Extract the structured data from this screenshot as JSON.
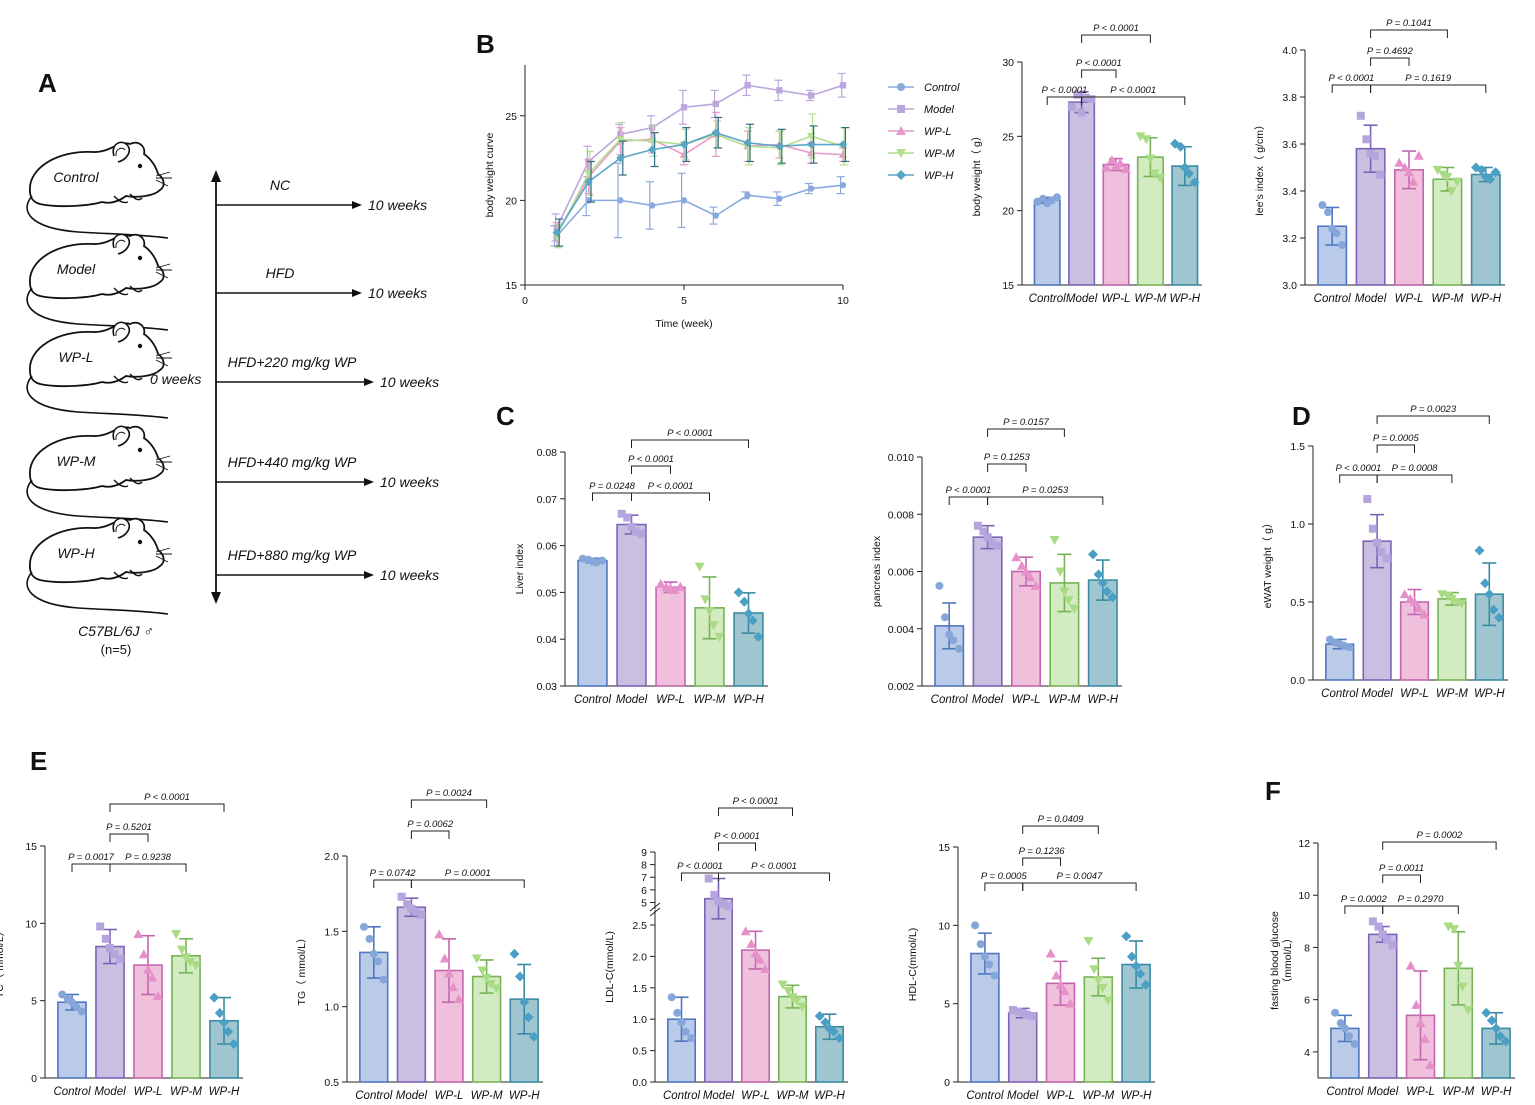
{
  "chart_data": [
    {
      "id": "A",
      "type": "schematic",
      "panel_label": "A",
      "groups": [
        "Control",
        "Model",
        "WP-L",
        "WP-M",
        "WP-H"
      ],
      "treatments": [
        "NC",
        "HFD",
        "HFD+220 mg/kg WP",
        "HFD+440 mg/kg WP",
        "HFD+880 mg/kg WP"
      ],
      "duration": "10 weeks",
      "start": "0 weeks",
      "strain": "C57BL/6J ♂",
      "n": "(n=5)"
    },
    {
      "id": "B1",
      "type": "line",
      "panel_label": "B",
      "xlabel": "Time (week)",
      "ylabel": "body weight curve",
      "xlim": [
        0,
        10
      ],
      "ylim": [
        15,
        28
      ],
      "xticks": [
        0,
        5,
        10
      ],
      "yticks": [
        15,
        20,
        25
      ],
      "x": [
        1,
        2,
        3,
        4,
        5,
        6,
        7,
        8,
        9,
        10
      ],
      "series": [
        {
          "name": "Control",
          "values": [
            17.9,
            20.0,
            20.0,
            19.7,
            20.0,
            19.1,
            20.3,
            20.1,
            20.7,
            20.9
          ],
          "err": [
            0.6,
            0.9,
            2.2,
            1.4,
            1.6,
            0.5,
            0.2,
            0.4,
            0.3,
            0.5
          ]
        },
        {
          "name": "Model",
          "values": [
            18.4,
            22.3,
            23.9,
            24.3,
            25.5,
            25.7,
            26.8,
            26.5,
            26.2,
            26.8
          ],
          "err": [
            0.8,
            0.9,
            0.6,
            0.7,
            1.0,
            0.8,
            0.6,
            0.6,
            0.3,
            0.7
          ]
        },
        {
          "name": "WP-L",
          "values": [
            18.0,
            21.4,
            23.5,
            23.6,
            22.7,
            23.9,
            23.2,
            23.3,
            22.8,
            22.7
          ],
          "err": [
            0.7,
            1.0,
            0.8,
            0.8,
            0.6,
            1.3,
            0.9,
            0.8,
            0.6,
            0.4
          ]
        },
        {
          "name": "WP-M",
          "values": [
            17.9,
            21.6,
            23.6,
            23.5,
            23.3,
            23.9,
            23.2,
            23.1,
            23.8,
            23.2
          ],
          "err": [
            0.7,
            1.3,
            1.0,
            0.9,
            0.9,
            0.8,
            1.1,
            1.0,
            1.3,
            1.1
          ]
        },
        {
          "name": "WP-H",
          "values": [
            18.1,
            21.1,
            22.5,
            23.0,
            23.3,
            24.0,
            23.4,
            23.2,
            23.3,
            23.3
          ],
          "err": [
            0.8,
            1.2,
            1.0,
            1.0,
            1.0,
            0.9,
            1.1,
            1.0,
            1.1,
            1.0
          ]
        }
      ]
    },
    {
      "id": "B2",
      "type": "bar",
      "ylabel": "body weight（ g）",
      "categories": [
        "Control",
        "Model",
        "WP-L",
        "WP-M",
        "WP-H"
      ],
      "ylim": [
        15,
        30
      ],
      "yticks": [
        15,
        20,
        25,
        30
      ],
      "values": [
        20.7,
        27.3,
        23.1,
        23.6,
        23.0
      ],
      "err": [
        0.2,
        0.7,
        0.4,
        1.3,
        1.3
      ],
      "points": [
        [
          20.6,
          20.8,
          20.5,
          20.7,
          20.9
        ],
        [
          27.0,
          27.8,
          26.6,
          27.6,
          27.5
        ],
        [
          22.9,
          23.4,
          23.0,
          23.2,
          22.8
        ],
        [
          25.0,
          24.8,
          23.5,
          22.5,
          22.2
        ],
        [
          24.5,
          24.3,
          22.9,
          22.5,
          21.9
        ]
      ],
      "comparisons": [
        {
          "from": 0,
          "to": 1,
          "label": "P < 0.0001",
          "level": 1
        },
        {
          "from": 1,
          "to": 2,
          "label": "P < 0.0001",
          "level": 2
        },
        {
          "from": 1,
          "to": 3,
          "label": "P < 0.0001",
          "level": 3
        },
        {
          "from": 1,
          "to": 4,
          "label": "P < 0.0001",
          "level": 1
        }
      ]
    },
    {
      "id": "B3",
      "type": "bar",
      "ylabel": "lee’s index（ g/cm）",
      "categories": [
        "Control",
        "Model",
        "WP-L",
        "WP-M",
        "WP-H"
      ],
      "ylim": [
        3.0,
        4.0
      ],
      "yticks": [
        "3.0",
        "3.2",
        "3.4",
        "3.6",
        "3.8",
        "4.0"
      ],
      "values": [
        3.25,
        3.58,
        3.49,
        3.45,
        3.47
      ],
      "err": [
        0.08,
        0.1,
        0.08,
        0.05,
        0.03
      ],
      "points": [
        [
          3.34,
          3.31,
          3.24,
          3.22,
          3.17
        ],
        [
          3.72,
          3.62,
          3.56,
          3.55,
          3.47
        ],
        [
          3.52,
          3.5,
          3.48,
          3.44,
          3.55
        ],
        [
          3.49,
          3.47,
          3.46,
          3.4,
          3.44
        ],
        [
          3.5,
          3.49,
          3.46,
          3.45,
          3.48
        ]
      ],
      "comparisons": [
        {
          "from": 0,
          "to": 1,
          "label": "P < 0.0001",
          "level": 1
        },
        {
          "from": 1,
          "to": 2,
          "label": "P = 0.4692",
          "level": 2
        },
        {
          "from": 1,
          "to": 3,
          "label": "P = 0.1041",
          "level": 3
        },
        {
          "from": 1,
          "to": 4,
          "label": "P = 0.1619",
          "level": 1
        }
      ]
    },
    {
      "id": "C1",
      "type": "bar",
      "panel_label": "C",
      "ylabel": "Liver index",
      "categories": [
        "Control",
        "Model",
        "WP-L",
        "WP-M",
        "WP-H"
      ],
      "ylim": [
        0.03,
        0.08
      ],
      "yticks": [
        "0.03",
        "0.04",
        "0.05",
        "0.06",
        "0.07",
        "0.08"
      ],
      "values": [
        0.0568,
        0.0645,
        0.0511,
        0.0467,
        0.0456
      ],
      "err": [
        0.0005,
        0.002,
        0.0011,
        0.0066,
        0.0043
      ],
      "points": [
        [
          0.0572,
          0.057,
          0.0566,
          0.0564,
          0.0568
        ],
        [
          0.0668,
          0.066,
          0.064,
          0.063,
          0.0625
        ],
        [
          0.0518,
          0.0512,
          0.0508,
          0.0505,
          0.0512
        ],
        [
          0.0555,
          0.0485,
          0.046,
          0.043,
          0.0405
        ],
        [
          0.05,
          0.048,
          0.0455,
          0.044,
          0.0405
        ]
      ],
      "comparisons": [
        {
          "from": 0,
          "to": 1,
          "label": "P = 0.0248",
          "level": 1
        },
        {
          "from": 1,
          "to": 2,
          "label": "P < 0.0001",
          "level": 2
        },
        {
          "from": 1,
          "to": 3,
          "label": "P < 0.0001",
          "level": 1
        },
        {
          "from": 1,
          "to": 4,
          "label": "P < 0.0001",
          "level": 3
        }
      ]
    },
    {
      "id": "C2",
      "type": "bar",
      "ylabel": "pancreas index",
      "categories": [
        "Control",
        "Model",
        "WP-L",
        "WP-M",
        "WP-H"
      ],
      "ylim": [
        0.002,
        0.01
      ],
      "yticks": [
        "0.002",
        "0.004",
        "0.006",
        "0.008",
        "0.010"
      ],
      "values": [
        0.0041,
        0.0072,
        0.006,
        0.0056,
        0.0057
      ],
      "err": [
        0.0008,
        0.0004,
        0.0005,
        0.001,
        0.0007
      ],
      "points": [
        [
          0.0055,
          0.0044,
          0.0038,
          0.0036,
          0.0033
        ],
        [
          0.0076,
          0.0074,
          0.0072,
          0.007,
          0.0069
        ],
        [
          0.0065,
          0.0062,
          0.006,
          0.0058,
          0.0055
        ],
        [
          0.0071,
          0.006,
          0.0053,
          0.005,
          0.0047
        ],
        [
          0.0066,
          0.0059,
          0.0056,
          0.0053,
          0.0051
        ]
      ],
      "comparisons": [
        {
          "from": 0,
          "to": 1,
          "label": "P < 0.0001",
          "level": 1
        },
        {
          "from": 1,
          "to": 2,
          "label": "P = 0.1253",
          "level": 2
        },
        {
          "from": 1,
          "to": 3,
          "label": "P = 0.0157",
          "level": 3
        },
        {
          "from": 1,
          "to": 4,
          "label": "P = 0.0253",
          "level": 1
        }
      ]
    },
    {
      "id": "D",
      "type": "bar",
      "panel_label": "D",
      "ylabel": "eWAT weight（ g）",
      "categories": [
        "Control",
        "Model",
        "WP-L",
        "WP-M",
        "WP-H"
      ],
      "ylim": [
        0.0,
        1.5
      ],
      "yticks": [
        "0.0",
        "0.5",
        "1.0",
        "1.5"
      ],
      "values": [
        0.23,
        0.89,
        0.5,
        0.52,
        0.55
      ],
      "err": [
        0.03,
        0.17,
        0.08,
        0.04,
        0.2
      ],
      "points": [
        [
          0.26,
          0.24,
          0.23,
          0.22,
          0.21
        ],
        [
          1.16,
          0.97,
          0.88,
          0.82,
          0.78
        ],
        [
          0.55,
          0.52,
          0.5,
          0.46,
          0.42
        ],
        [
          0.55,
          0.54,
          0.52,
          0.5,
          0.49
        ],
        [
          0.83,
          0.62,
          0.55,
          0.45,
          0.4
        ]
      ],
      "comparisons": [
        {
          "from": 0,
          "to": 1,
          "label": "P < 0.0001",
          "level": 1
        },
        {
          "from": 1,
          "to": 2,
          "label": "P = 0.0005",
          "level": 2
        },
        {
          "from": 1,
          "to": 3,
          "label": "P = 0.0008",
          "level": 1
        },
        {
          "from": 1,
          "to": 4,
          "label": "P = 0.0023",
          "level": 3
        }
      ]
    },
    {
      "id": "E1",
      "type": "bar",
      "panel_label": "E",
      "ylabel": "TC（ mmol/L）",
      "categories": [
        "Control",
        "Model",
        "WP-L",
        "WP-M",
        "WP-H"
      ],
      "ylim": [
        0,
        15
      ],
      "yticks": [
        "0",
        "5",
        "10",
        "15"
      ],
      "values": [
        4.9,
        8.5,
        7.3,
        7.9,
        3.7
      ],
      "err": [
        0.5,
        1.1,
        1.9,
        1.1,
        1.5
      ],
      "points": [
        [
          5.4,
          5.1,
          4.9,
          4.6,
          4.3
        ],
        [
          9.8,
          9.0,
          8.4,
          8.0,
          7.7
        ],
        [
          9.3,
          8.0,
          7.0,
          6.5,
          5.3
        ],
        [
          9.3,
          8.3,
          7.8,
          7.5,
          7.3
        ],
        [
          5.2,
          4.2,
          3.6,
          3.0,
          2.2
        ]
      ],
      "comparisons": [
        {
          "from": 0,
          "to": 1,
          "label": "P = 0.0017",
          "level": 1
        },
        {
          "from": 1,
          "to": 2,
          "label": "P = 0.5201",
          "level": 2
        },
        {
          "from": 1,
          "to": 3,
          "label": "P = 0.9238",
          "level": 1
        },
        {
          "from": 1,
          "to": 4,
          "label": "P < 0.0001",
          "level": 3
        }
      ]
    },
    {
      "id": "E2",
      "type": "bar",
      "ylabel": "TG（ mmol/L）",
      "categories": [
        "Control",
        "Model",
        "WP-L",
        "WP-M",
        "WP-H"
      ],
      "ylim": [
        0.5,
        2.0
      ],
      "yticks": [
        "0.5",
        "1.0",
        "1.5",
        "2.0"
      ],
      "values": [
        1.36,
        1.66,
        1.24,
        1.2,
        1.05
      ],
      "err": [
        0.17,
        0.06,
        0.21,
        0.11,
        0.23
      ],
      "points": [
        [
          1.53,
          1.45,
          1.35,
          1.3,
          1.18
        ],
        [
          1.73,
          1.68,
          1.65,
          1.63,
          1.61
        ],
        [
          1.48,
          1.32,
          1.22,
          1.13,
          1.05
        ],
        [
          1.32,
          1.24,
          1.19,
          1.15,
          1.12
        ],
        [
          1.35,
          1.2,
          1.03,
          0.93,
          0.8
        ]
      ],
      "comparisons": [
        {
          "from": 0,
          "to": 1,
          "label": "P = 0.0742",
          "level": 1
        },
        {
          "from": 1,
          "to": 2,
          "label": "P = 0.0062",
          "level": 2
        },
        {
          "from": 1,
          "to": 3,
          "label": "P = 0.0024",
          "level": 3
        },
        {
          "from": 1,
          "to": 4,
          "label": "P = 0.0001",
          "level": 1
        }
      ]
    },
    {
      "id": "E3",
      "type": "bar",
      "ylabel": "LDL-C(mmol/L)",
      "axis_break": true,
      "categories": [
        "Control",
        "Model",
        "WP-L",
        "WP-M",
        "WP-H"
      ],
      "ylim": [
        0,
        9
      ],
      "yticks_lower": [
        "0.0",
        "0.5",
        "1.0",
        "1.5",
        "2.0",
        "2.5"
      ],
      "yticks_upper": [
        "5",
        "6",
        "7",
        "8",
        "9"
      ],
      "values": [
        1.0,
        5.3,
        2.1,
        1.36,
        0.88
      ],
      "err": [
        0.35,
        1.6,
        0.3,
        0.18,
        0.2
      ],
      "points": [
        [
          1.35,
          1.1,
          0.95,
          0.8,
          0.7
        ],
        [
          6.9,
          5.6,
          5.1,
          4.9,
          4.7
        ],
        [
          2.4,
          2.2,
          2.05,
          1.95,
          1.8
        ],
        [
          1.55,
          1.45,
          1.35,
          1.3,
          1.2
        ],
        [
          1.05,
          0.95,
          0.85,
          0.8,
          0.7
        ]
      ],
      "comparisons": [
        {
          "from": 0,
          "to": 1,
          "label": "P < 0.0001",
          "level": 1
        },
        {
          "from": 1,
          "to": 2,
          "label": "P < 0.0001",
          "level": 2
        },
        {
          "from": 1,
          "to": 3,
          "label": "P < 0.0001",
          "level": 3
        },
        {
          "from": 1,
          "to": 4,
          "label": "P < 0.0001",
          "level": 1
        }
      ]
    },
    {
      "id": "E4",
      "type": "bar",
      "ylabel": "HDL-C(mmol/L)",
      "categories": [
        "Control",
        "Model",
        "WP-L",
        "WP-M",
        "WP-H"
      ],
      "ylim": [
        0,
        15
      ],
      "yticks": [
        "0",
        "5",
        "10",
        "15"
      ],
      "values": [
        8.2,
        4.4,
        6.3,
        6.7,
        7.5
      ],
      "err": [
        1.3,
        0.3,
        1.4,
        1.2,
        1.5
      ],
      "points": [
        [
          10.0,
          8.8,
          8.0,
          7.5,
          6.8
        ],
        [
          4.6,
          4.5,
          4.4,
          4.3,
          4.2
        ],
        [
          8.2,
          6.8,
          6.2,
          5.8,
          5.0
        ],
        [
          9.0,
          7.2,
          6.5,
          6.0,
          5.2
        ],
        [
          9.3,
          8.0,
          7.4,
          6.9,
          6.2
        ]
      ],
      "comparisons": [
        {
          "from": 0,
          "to": 1,
          "label": "P = 0.0005",
          "level": 1
        },
        {
          "from": 1,
          "to": 2,
          "label": "P = 0.1236",
          "level": 2
        },
        {
          "from": 1,
          "to": 3,
          "label": "P = 0.0409",
          "level": 3
        },
        {
          "from": 1,
          "to": 4,
          "label": "P = 0.0047",
          "level": 1
        }
      ]
    },
    {
      "id": "F",
      "type": "bar",
      "panel_label": "F",
      "ylabel": "fasting blood glucose\n（mmol/L）",
      "categories": [
        "Control",
        "Model",
        "WP-L",
        "WP-M",
        "WP-H"
      ],
      "ylim": [
        3,
        12
      ],
      "yticks": [
        "4",
        "6",
        "8",
        "10",
        "12"
      ],
      "values": [
        4.9,
        8.5,
        5.4,
        7.2,
        4.9
      ],
      "err": [
        0.5,
        0.3,
        1.7,
        1.4,
        0.6
      ],
      "points": [
        [
          5.5,
          5.1,
          4.9,
          4.6,
          4.3
        ],
        [
          9.0,
          8.8,
          8.5,
          8.3,
          8.1
        ],
        [
          7.3,
          5.8,
          5.1,
          4.5,
          3.5
        ],
        [
          8.8,
          8.7,
          7.3,
          6.5,
          5.6
        ],
        [
          5.5,
          5.2,
          4.9,
          4.6,
          4.4
        ]
      ],
      "comparisons": [
        {
          "from": 0,
          "to": 1,
          "label": "P = 0.0002",
          "level": 1
        },
        {
          "from": 1,
          "to": 2,
          "label": "P = 0.0011",
          "level": 2
        },
        {
          "from": 1,
          "to": 3,
          "label": "P = 0.2970",
          "level": 1
        },
        {
          "from": 1,
          "to": 4,
          "label": "P = 0.0002",
          "level": 3
        }
      ]
    }
  ],
  "palette": {
    "fills": [
      "#b9cbe8",
      "#c9bfe0",
      "#efbfdc",
      "#d3ebc0",
      "#9fc6d0"
    ],
    "edges": [
      "#4f77c0",
      "#7c63b8",
      "#c266b0",
      "#77b356",
      "#3b8aa3"
    ],
    "points": [
      "#86a6da",
      "#b4a5dc",
      "#e590c9",
      "#a9da84",
      "#4a9fc4"
    ],
    "line_colors": [
      "#8aaade",
      "#bba6dd",
      "#e89ac8",
      "#b5de8f",
      "#5aa6c6"
    ]
  }
}
